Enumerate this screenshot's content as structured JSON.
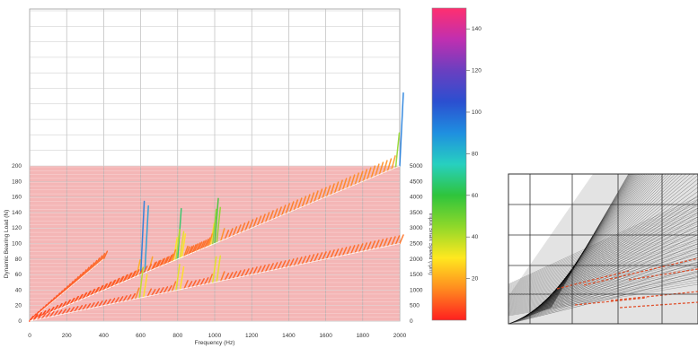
{
  "chart_data": [
    {
      "type": "waterfall",
      "title": "",
      "xlabel": "Frequency (Hz)",
      "ylabel": "Dynamic Bearing Load (N)",
      "y2label": "Input Shaft Speed (rpm)",
      "xlim": [
        0,
        2000
      ],
      "ylim": [
        0,
        200
      ],
      "y2lim": [
        0,
        5000
      ],
      "x_ticks": [
        "0",
        "200",
        "400",
        "600",
        "800",
        "1000",
        "1200",
        "1400",
        "1600",
        "1800",
        "2000"
      ],
      "y_ticks": [
        "0",
        "20",
        "40",
        "60",
        "80",
        "100",
        "120",
        "140",
        "160",
        "180",
        "200"
      ],
      "y2_ticks": [
        "0",
        "500",
        "1000",
        "1500",
        "2000",
        "2500",
        "3000",
        "3500",
        "4000",
        "4500",
        "5000"
      ],
      "grid": true,
      "colorbar": {
        "ticks": [
          "20",
          "40",
          "60",
          "80",
          "100",
          "120",
          "140"
        ],
        "range": [
          0,
          150
        ],
        "colors": [
          "#ff1f1f",
          "#ff8a1f",
          "#ffe81f",
          "#8fd82a",
          "#2fc43c",
          "#27d0c0",
          "#1f8fe0",
          "#2b4fd0",
          "#6a3fc0",
          "#c02fb0",
          "#ff2f6f"
        ]
      },
      "background_band_color": "#f4b6b6",
      "series": [
        {
          "points": [
            [
              0,
              0
            ],
            [
              200,
              1000
            ],
            [
              400,
              2000
            ]
          ],
          "peaks": []
        },
        {
          "points": [
            [
              0,
              0
            ],
            [
              200,
              500
            ],
            [
              400,
              1000
            ],
            [
              600,
              1500
            ],
            [
              800,
              2000
            ],
            [
              1000,
              2500
            ]
          ],
          "peaks": [
            {
              "x": 610,
              "y": 105
            },
            {
              "x": 800,
              "y": 55
            },
            {
              "x": 1000,
              "y": 47
            }
          ]
        },
        {
          "points": [
            [
              0,
              0
            ],
            [
              400,
              1000
            ],
            [
              800,
              2000
            ],
            [
              1200,
              3000
            ],
            [
              1600,
              4000
            ],
            [
              2000,
              5000
            ]
          ],
          "peaks": [
            {
              "x": 800,
              "y": 34
            },
            {
              "x": 1000,
              "y": 44
            },
            {
              "x": 2000,
              "y": 78
            }
          ]
        },
        {
          "points": [
            [
              0,
              0
            ],
            [
              2000,
              2500
            ]
          ],
          "peaks": [
            {
              "x": 600,
              "y": 35
            },
            {
              "x": 800,
              "y": 30
            },
            {
              "x": 1000,
              "y": 32
            }
          ]
        }
      ]
    },
    {
      "type": "line",
      "title": "",
      "xlabel": "",
      "ylabel": "",
      "grid": true,
      "series_color": "#000000",
      "highlight_color": "#e0421a"
    }
  ]
}
